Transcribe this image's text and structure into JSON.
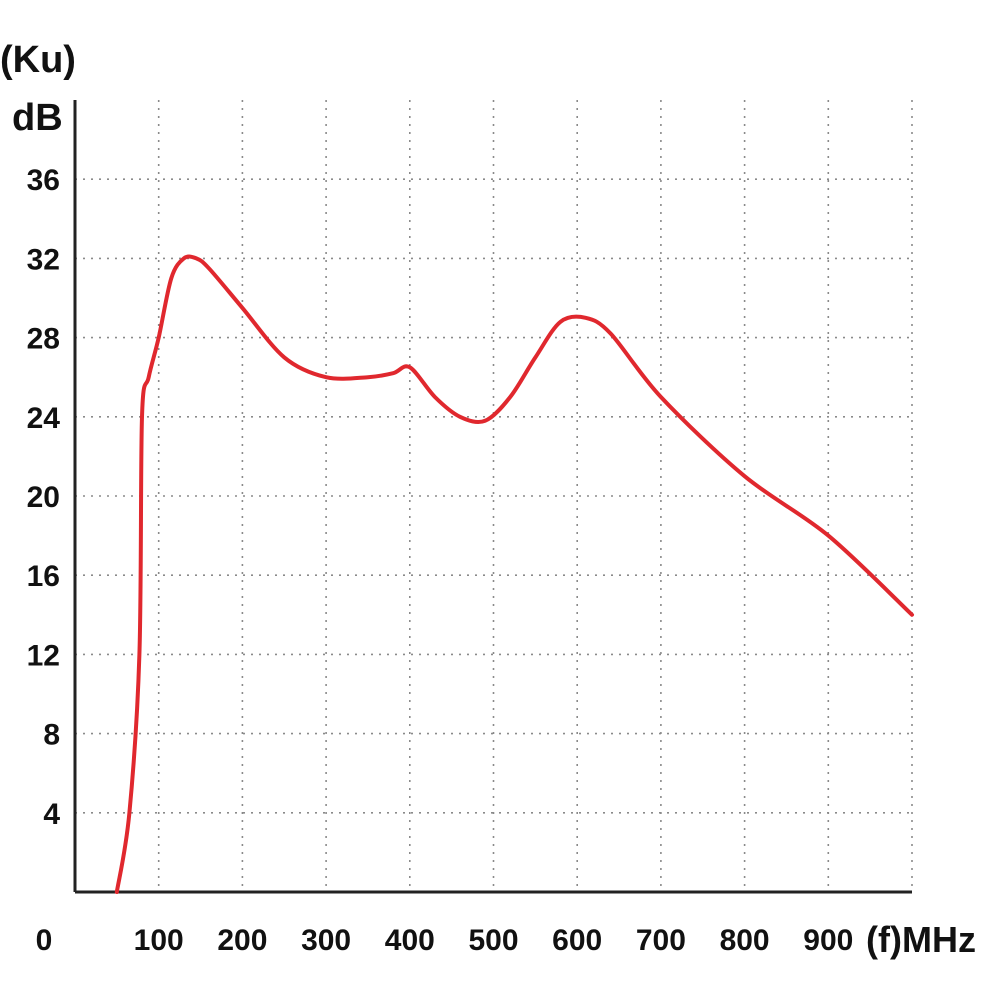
{
  "chart_data": {
    "type": "line",
    "title": "",
    "ylabel": "(Ku)",
    "yunit": "dB",
    "xlabel": "(f)MHz",
    "xlim": [
      0,
      1000
    ],
    "ylim": [
      0,
      40
    ],
    "x_ticks": [
      0,
      100,
      200,
      300,
      400,
      500,
      600,
      700,
      800,
      900
    ],
    "y_ticks": [
      4,
      8,
      12,
      16,
      20,
      24,
      28,
      32,
      36
    ],
    "grid": true,
    "color": "#e0282e",
    "series": [
      {
        "x": [
          50,
          65,
          77,
          80,
          88,
          100,
          115,
          130,
          145,
          160,
          200,
          250,
          300,
          350,
          380,
          400,
          430,
          460,
          490,
          520,
          550,
          580,
          610,
          640,
          700,
          800,
          900,
          1000
        ],
        "y": [
          0,
          4,
          12,
          24,
          26,
          28,
          31,
          32,
          32,
          31.5,
          29.5,
          27,
          26,
          26,
          26.2,
          26.5,
          25,
          24,
          23.8,
          25,
          27,
          28.8,
          29,
          28.2,
          25,
          21,
          18,
          14
        ]
      }
    ]
  }
}
